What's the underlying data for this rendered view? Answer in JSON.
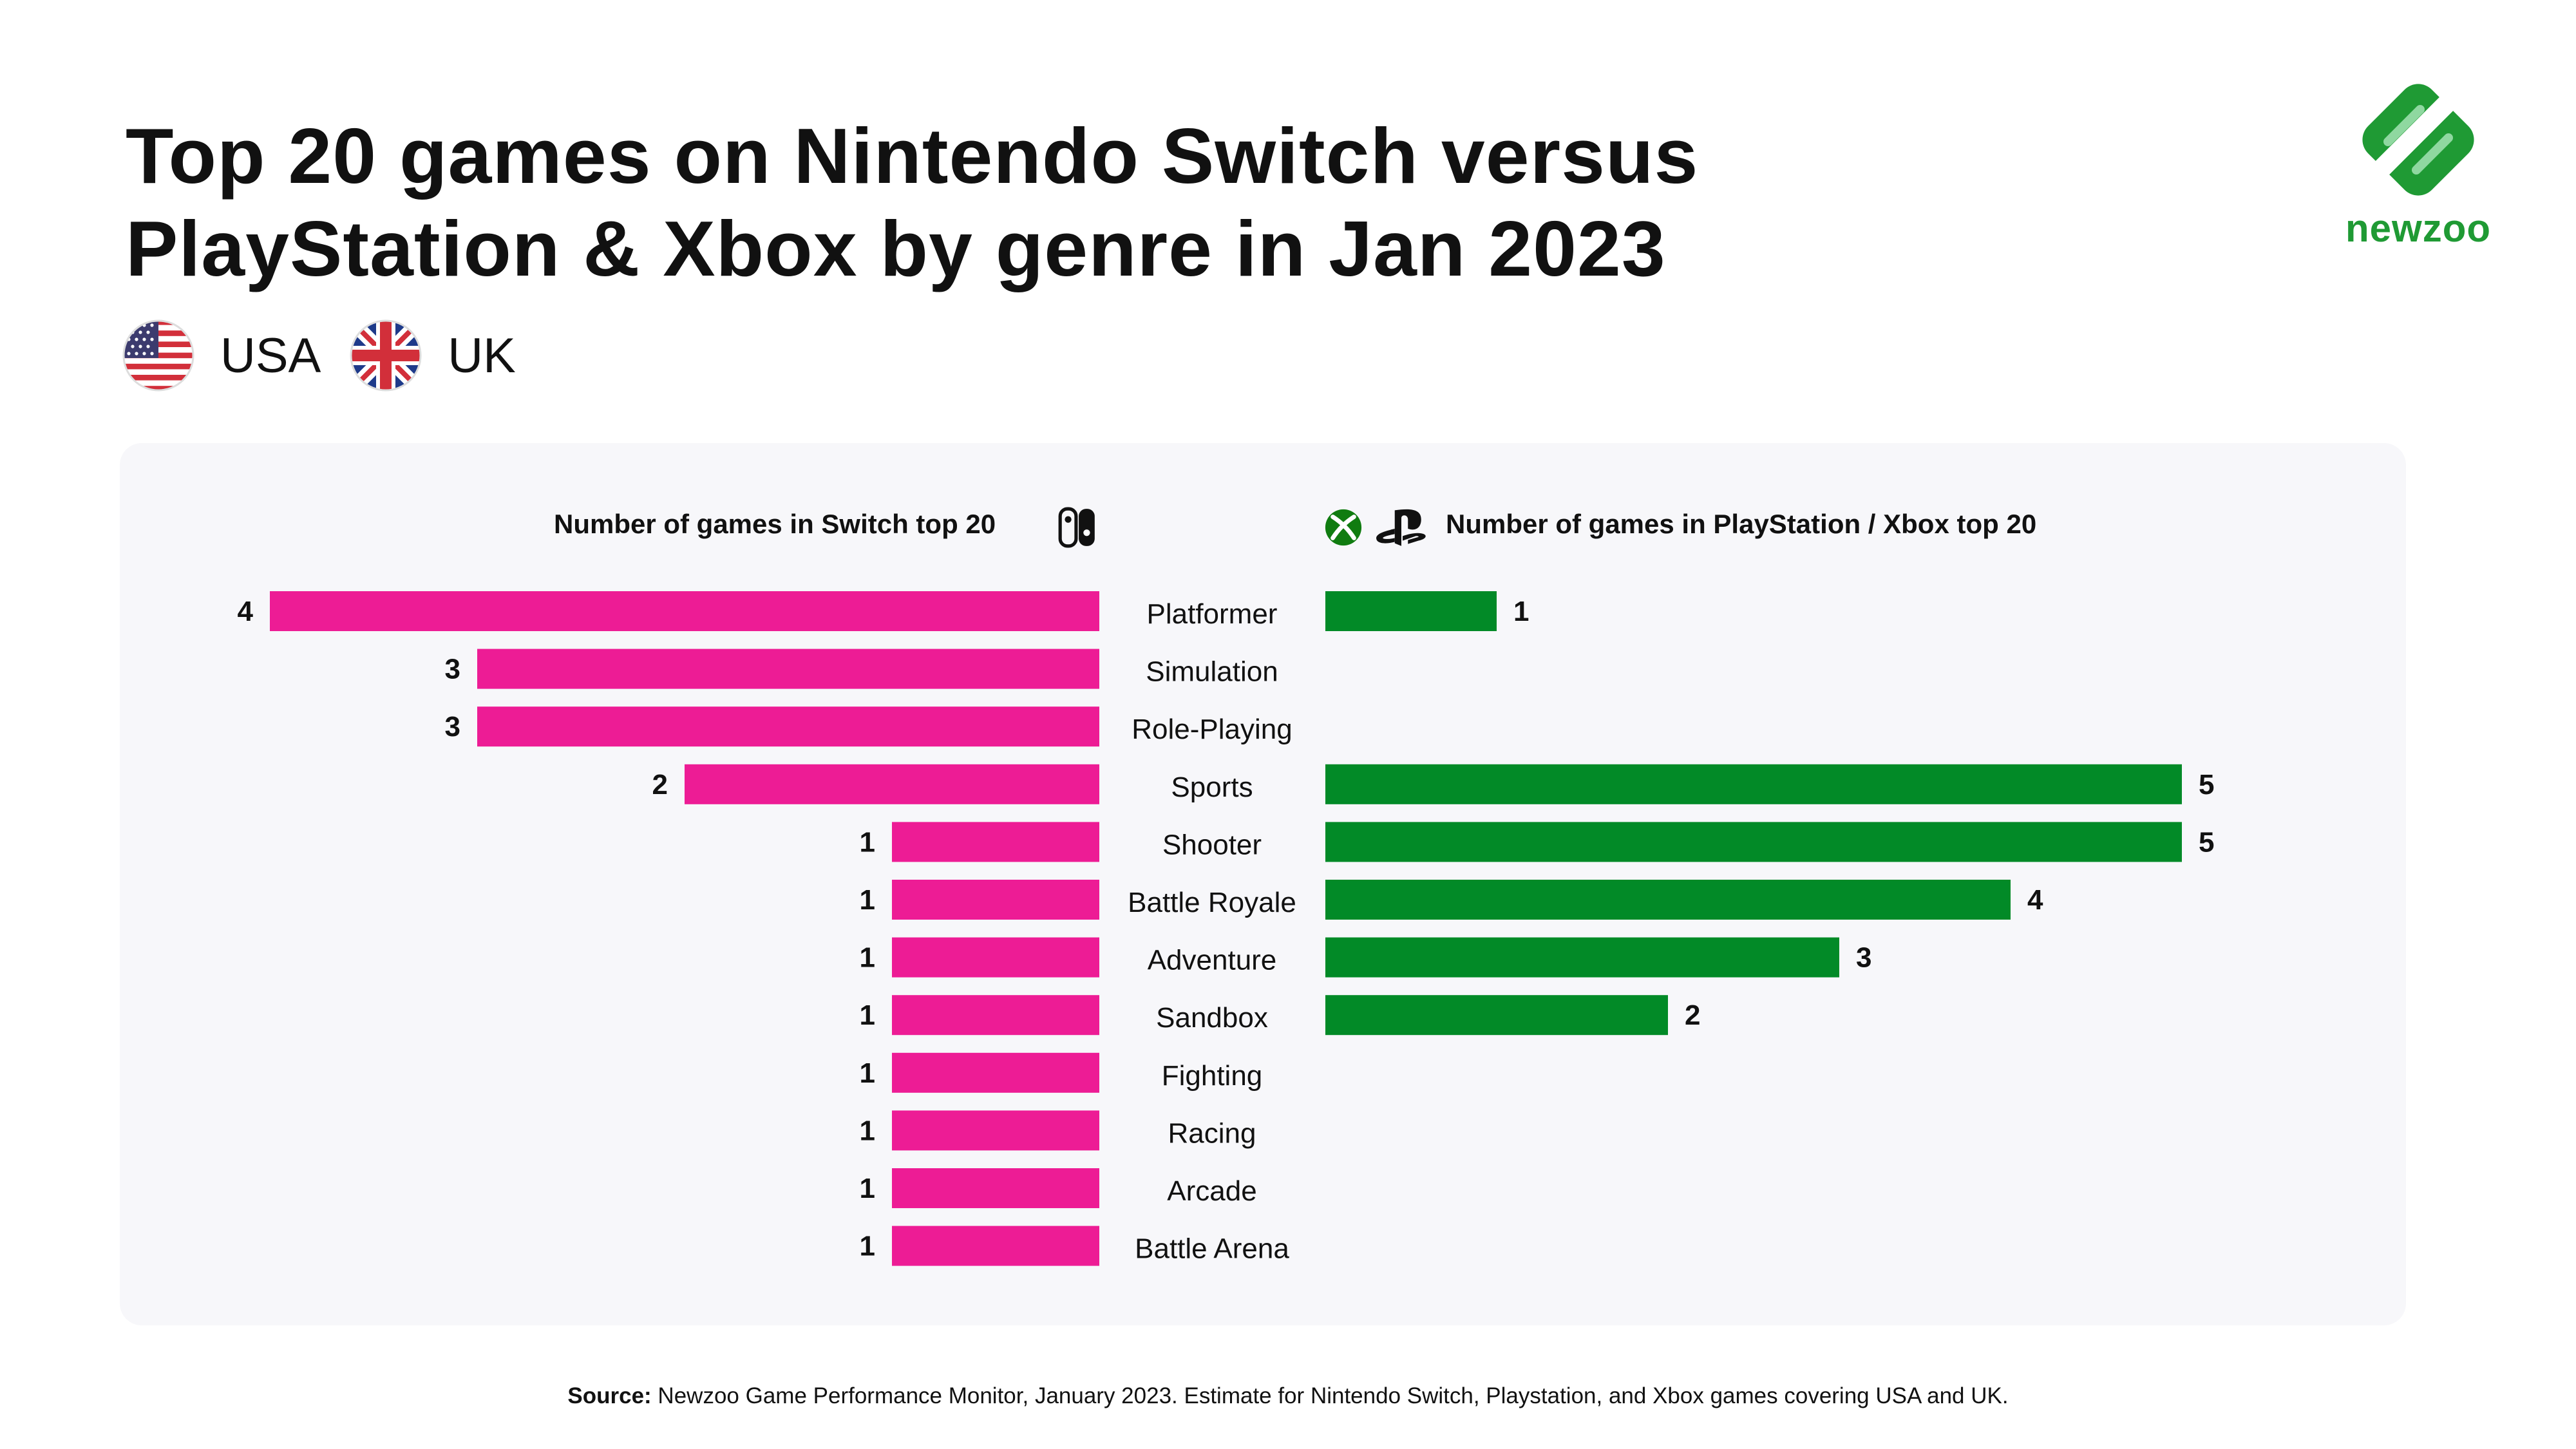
{
  "title": {
    "line1": "Top 20 games on Nintendo Switch versus",
    "line2": "PlayStation & Xbox by genre in Jan 2023"
  },
  "regions": [
    {
      "label": "USA",
      "icon": "usa-flag-icon"
    },
    {
      "label": "UK",
      "icon": "uk-flag-icon"
    }
  ],
  "logo": {
    "text": "newzoo",
    "icon": "newzoo-logo-icon"
  },
  "colors": {
    "switch": "#ed1c95",
    "playstation_xbox": "#028a27",
    "panel": "#f7f7fa"
  },
  "chart_data": {
    "type": "bar",
    "orientation": "horizontal-diverging",
    "categories": [
      "Platformer",
      "Simulation",
      "Role-Playing",
      "Sports",
      "Shooter",
      "Battle Royale",
      "Adventure",
      "Sandbox",
      "Fighting",
      "Racing",
      "Arcade",
      "Battle Arena"
    ],
    "series": [
      {
        "name": "Number of games in Switch top 20",
        "color": "#ed1c95",
        "values": [
          4,
          3,
          3,
          2,
          1,
          1,
          1,
          1,
          1,
          1,
          1,
          1
        ]
      },
      {
        "name": "Number of games in PlayStation / Xbox top 20",
        "color": "#028a27",
        "values": [
          1,
          null,
          null,
          5,
          5,
          4,
          3,
          2,
          null,
          null,
          null,
          null
        ]
      }
    ],
    "xlim": [
      0,
      5
    ],
    "grid": false,
    "legend": "none"
  },
  "source": {
    "label": "Source:",
    "text": " Newzoo Game Performance Monitor, January 2023. Estimate for Nintendo Switch, Playstation, and Xbox games covering USA and UK."
  }
}
